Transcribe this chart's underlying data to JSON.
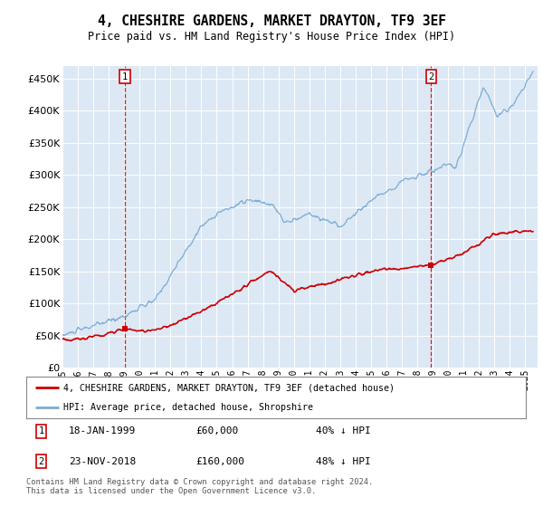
{
  "title": "4, CHESHIRE GARDENS, MARKET DRAYTON, TF9 3EF",
  "subtitle": "Price paid vs. HM Land Registry's House Price Index (HPI)",
  "hpi_label": "HPI: Average price, detached house, Shropshire",
  "price_label": "4, CHESHIRE GARDENS, MARKET DRAYTON, TF9 3EF (detached house)",
  "footnote": "Contains HM Land Registry data © Crown copyright and database right 2024.\nThis data is licensed under the Open Government Licence v3.0.",
  "transaction1": {
    "label": "1",
    "date": "18-JAN-1999",
    "price": 60000,
    "note": "40% ↓ HPI"
  },
  "transaction2": {
    "label": "2",
    "date": "23-NOV-2018",
    "price": 160000,
    "note": "48% ↓ HPI"
  },
  "hpi_color": "#7aadd4",
  "price_color": "#cc0000",
  "marker_box_color": "#cc0000",
  "background_color": "#dde8f5",
  "ylim": [
    0,
    470000
  ],
  "yticks": [
    0,
    50000,
    100000,
    150000,
    200000,
    250000,
    300000,
    350000,
    400000,
    450000
  ],
  "xlim_start": 1995.0,
  "xlim_end": 2025.8,
  "t1_x": 1999.04,
  "t2_x": 2018.9,
  "t1_price": 60000,
  "t2_price": 160000
}
